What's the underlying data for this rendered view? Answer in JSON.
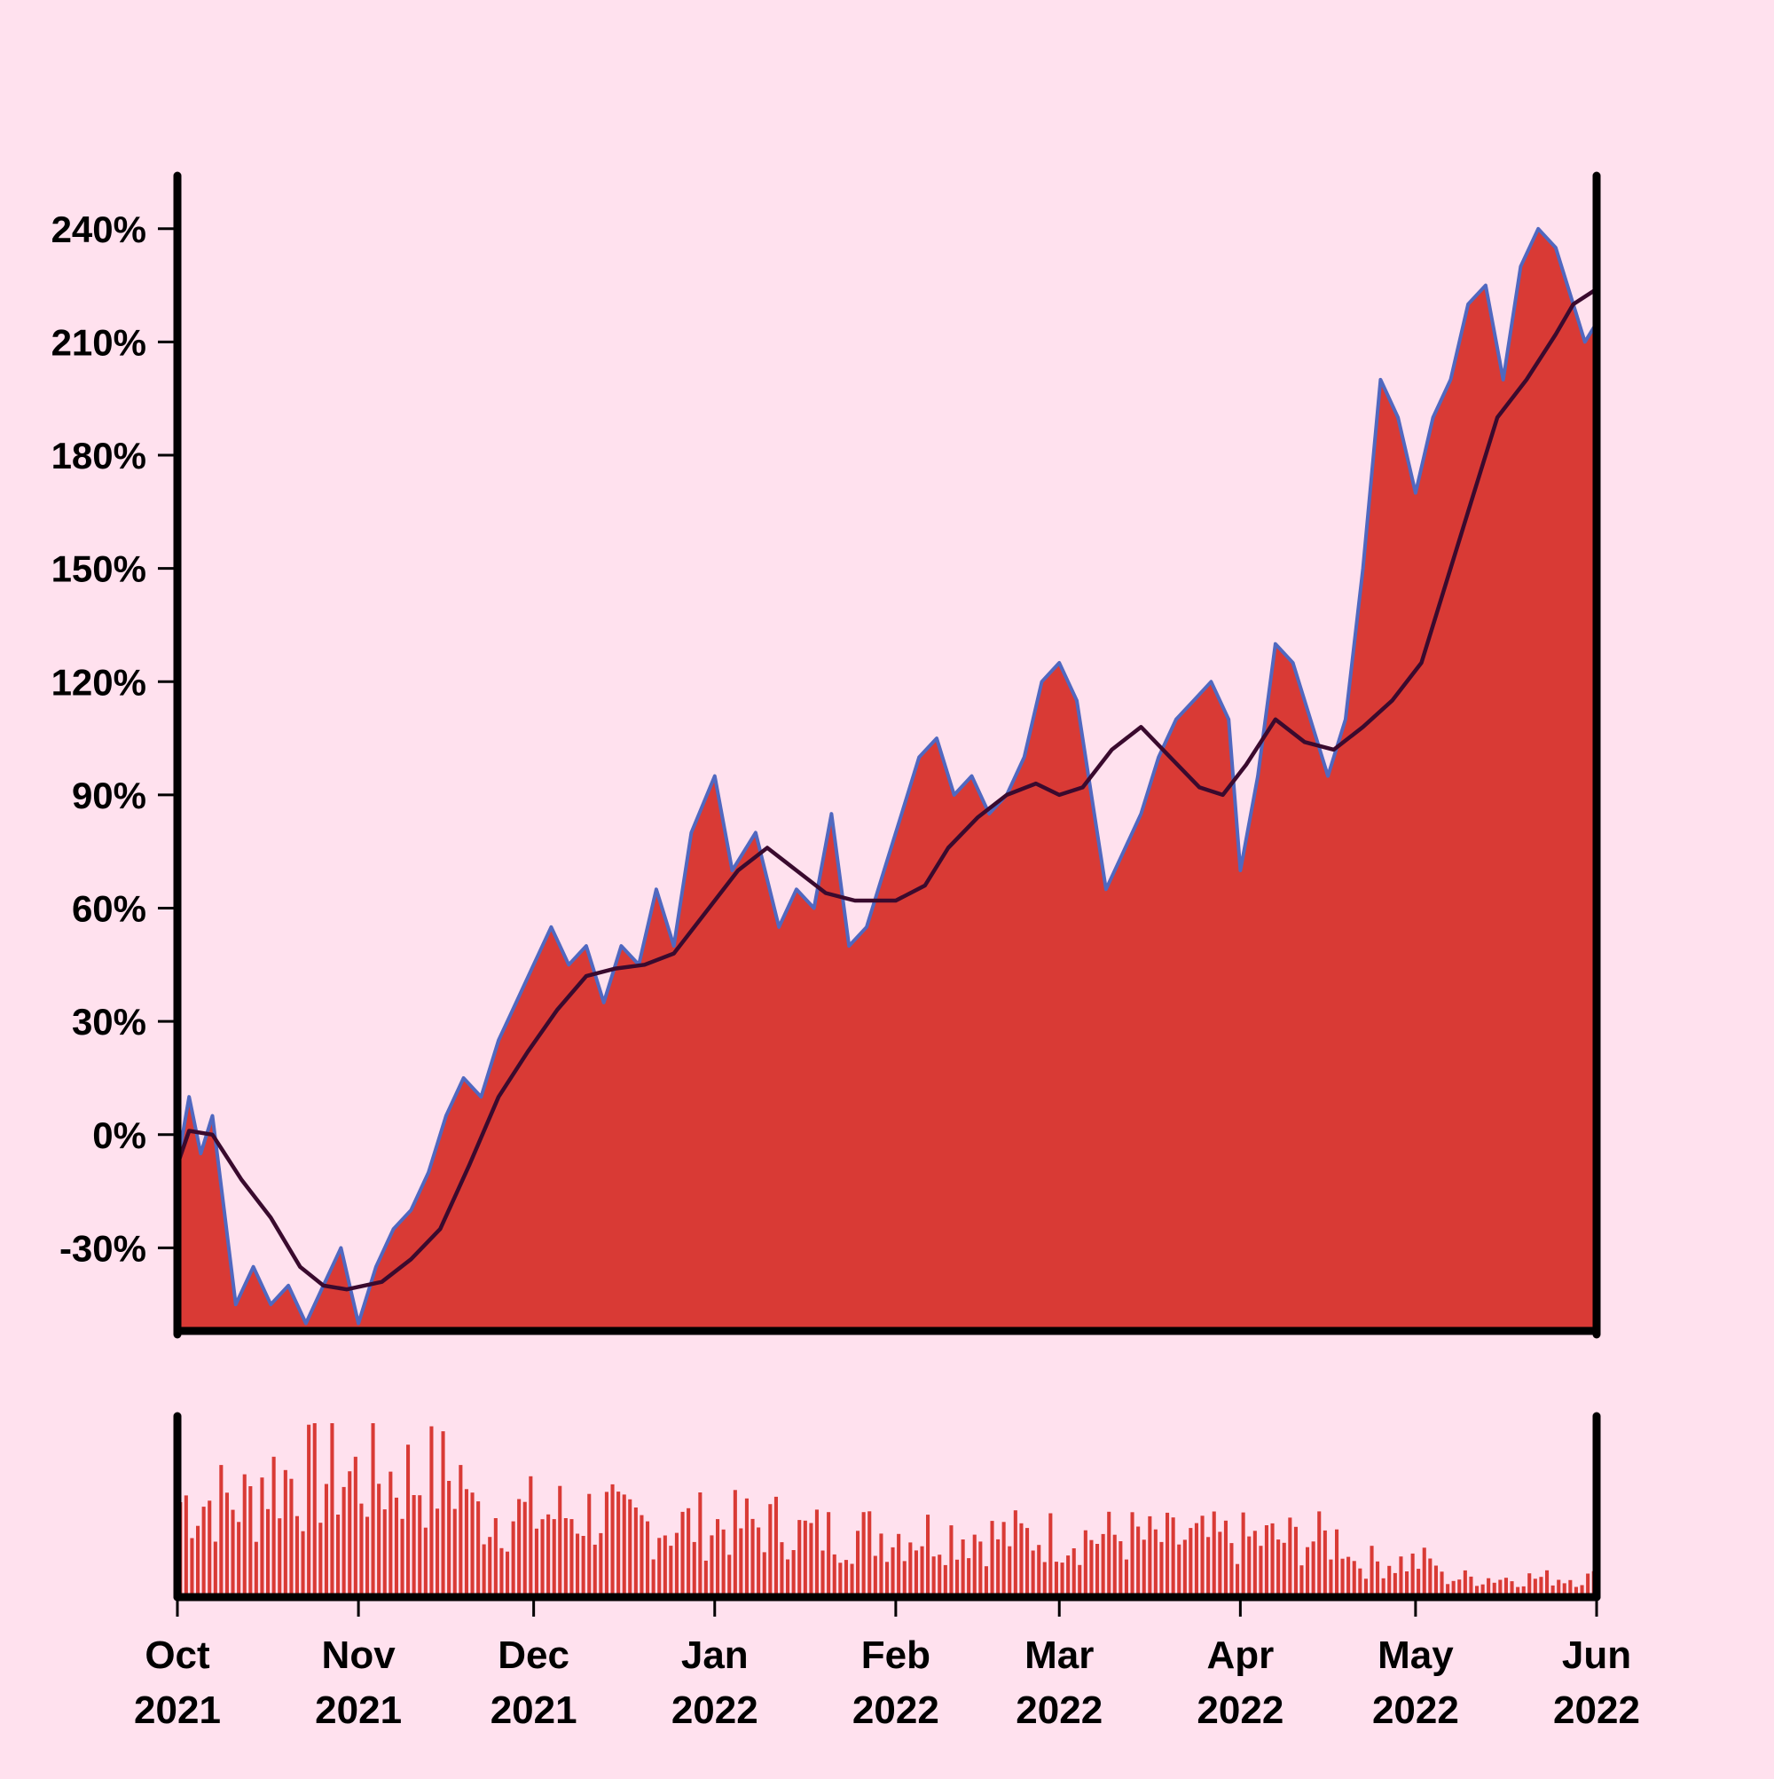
{
  "chart_data": {
    "type": "area",
    "title": "",
    "xlabel": "",
    "ylabel": "",
    "y_format": "percent",
    "ylim": [
      -52,
      247
    ],
    "yticks": [
      -30,
      0,
      30,
      60,
      90,
      120,
      150,
      180,
      210,
      240
    ],
    "ytick_labels": [
      "-30%",
      "0%",
      "30%",
      "60%",
      "90%",
      "120%",
      "150%",
      "180%",
      "210%",
      "240%"
    ],
    "xlim": [
      "2021-10-01",
      "2022-06-01"
    ],
    "xticks": [
      {
        "date": "2021-10-01",
        "month": "Oct",
        "year": "2021"
      },
      {
        "date": "2021-11-01",
        "month": "Nov",
        "year": "2021"
      },
      {
        "date": "2021-12-01",
        "month": "Dec",
        "year": "2021"
      },
      {
        "date": "2022-01-01",
        "month": "Jan",
        "year": "2022"
      },
      {
        "date": "2022-02-01",
        "month": "Feb",
        "year": "2022"
      },
      {
        "date": "2022-03-01",
        "month": "Mar",
        "year": "2022"
      },
      {
        "date": "2022-04-01",
        "month": "Apr",
        "year": "2022"
      },
      {
        "date": "2022-05-01",
        "month": "May",
        "year": "2022"
      },
      {
        "date": "2022-06-01",
        "month": "Jun",
        "year": "2022"
      }
    ],
    "colors": {
      "background": "#ffe1ee",
      "area_fill": "#d93a35",
      "price_line": "#5068c0",
      "moving_average": "#3a0a2e",
      "volume_bars": "#d93a35",
      "axes": "#000000"
    },
    "series": [
      {
        "kind": "price",
        "x": [
          "2021-10-01",
          "2021-10-03",
          "2021-10-05",
          "2021-10-07",
          "2021-10-09",
          "2021-10-11",
          "2021-10-14",
          "2021-10-17",
          "2021-10-20",
          "2021-10-23",
          "2021-10-26",
          "2021-10-29",
          "2021-11-01",
          "2021-11-04",
          "2021-11-07",
          "2021-11-10",
          "2021-11-13",
          "2021-11-16",
          "2021-11-19",
          "2021-11-22",
          "2021-11-25",
          "2021-11-28",
          "2021-12-01",
          "2021-12-04",
          "2021-12-07",
          "2021-12-10",
          "2021-12-13",
          "2021-12-16",
          "2021-12-19",
          "2021-12-22",
          "2021-12-25",
          "2021-12-28",
          "2022-01-01",
          "2022-01-04",
          "2022-01-08",
          "2022-01-12",
          "2022-01-15",
          "2022-01-18",
          "2022-01-21",
          "2022-01-24",
          "2022-01-27",
          "2022-01-30",
          "2022-02-02",
          "2022-02-05",
          "2022-02-08",
          "2022-02-11",
          "2022-02-14",
          "2022-02-17",
          "2022-02-20",
          "2022-02-23",
          "2022-02-26",
          "2022-03-01",
          "2022-03-04",
          "2022-03-07",
          "2022-03-09",
          "2022-03-12",
          "2022-03-15",
          "2022-03-18",
          "2022-03-21",
          "2022-03-24",
          "2022-03-27",
          "2022-03-30",
          "2022-04-01",
          "2022-04-04",
          "2022-04-07",
          "2022-04-10",
          "2022-04-13",
          "2022-04-16",
          "2022-04-19",
          "2022-04-22",
          "2022-04-25",
          "2022-04-28",
          "2022-05-01",
          "2022-05-04",
          "2022-05-07",
          "2022-05-10",
          "2022-05-13",
          "2022-05-16",
          "2022-05-19",
          "2022-05-22",
          "2022-05-25",
          "2022-05-28",
          "2022-05-30",
          "2022-06-01"
        ],
        "y": [
          -8,
          10,
          -5,
          5,
          -20,
          -45,
          -35,
          -45,
          -40,
          -50,
          -40,
          -30,
          -50,
          -35,
          -25,
          -20,
          -10,
          5,
          15,
          10,
          25,
          35,
          45,
          55,
          45,
          50,
          35,
          50,
          45,
          65,
          50,
          80,
          95,
          70,
          80,
          55,
          65,
          60,
          85,
          50,
          55,
          70,
          85,
          100,
          105,
          90,
          95,
          85,
          90,
          100,
          120,
          125,
          115,
          85,
          65,
          75,
          85,
          100,
          110,
          115,
          120,
          110,
          70,
          95,
          130,
          125,
          110,
          95,
          110,
          150,
          200,
          190,
          170,
          190,
          200,
          220,
          225,
          200,
          230,
          240,
          235,
          220,
          210,
          215
        ]
      },
      {
        "kind": "moving_average",
        "x": [
          "2021-10-01",
          "2021-10-03",
          "2021-10-07",
          "2021-10-12",
          "2021-10-17",
          "2021-10-22",
          "2021-10-26",
          "2021-10-30",
          "2021-11-05",
          "2021-11-10",
          "2021-11-15",
          "2021-11-20",
          "2021-11-25",
          "2021-11-30",
          "2021-12-05",
          "2021-12-10",
          "2021-12-15",
          "2021-12-20",
          "2021-12-25",
          "2022-01-01",
          "2022-01-05",
          "2022-01-10",
          "2022-01-15",
          "2022-01-20",
          "2022-01-25",
          "2022-02-01",
          "2022-02-06",
          "2022-02-10",
          "2022-02-15",
          "2022-02-20",
          "2022-02-25",
          "2022-03-01",
          "2022-03-05",
          "2022-03-10",
          "2022-03-15",
          "2022-03-20",
          "2022-03-25",
          "2022-03-29",
          "2022-04-02",
          "2022-04-07",
          "2022-04-12",
          "2022-04-17",
          "2022-04-22",
          "2022-04-27",
          "2022-05-02",
          "2022-05-06",
          "2022-05-10",
          "2022-05-15",
          "2022-05-20",
          "2022-05-25",
          "2022-05-28",
          "2022-06-01"
        ],
        "y": [
          -8,
          1,
          0,
          -12,
          -22,
          -35,
          -40,
          -41,
          -39,
          -33,
          -25,
          -8,
          10,
          22,
          33,
          42,
          44,
          45,
          48,
          62,
          70,
          76,
          70,
          64,
          62,
          62,
          66,
          76,
          84,
          90,
          93,
          90,
          92,
          102,
          108,
          100,
          92,
          90,
          98,
          110,
          104,
          102,
          108,
          115,
          125,
          145,
          165,
          190,
          200,
          212,
          220,
          224
        ]
      }
    ],
    "volume": {
      "type": "bar",
      "ylim": [
        0,
        100
      ],
      "segments": [
        {
          "from": "2021-10-01",
          "to": "2021-10-15",
          "level": 60
        },
        {
          "from": "2021-10-15",
          "to": "2021-11-20",
          "level": 75
        },
        {
          "from": "2021-11-20",
          "to": "2021-12-15",
          "level": 52
        },
        {
          "from": "2021-12-15",
          "to": "2022-01-15",
          "level": 45
        },
        {
          "from": "2022-01-15",
          "to": "2022-02-15",
          "level": 40
        },
        {
          "from": "2022-02-15",
          "to": "2022-03-15",
          "level": 38
        },
        {
          "from": "2022-03-15",
          "to": "2022-04-20",
          "level": 36
        },
        {
          "from": "2022-04-20",
          "to": "2022-05-05",
          "level": 22
        },
        {
          "from": "2022-05-05",
          "to": "2022-06-01",
          "level": 12
        }
      ]
    }
  }
}
